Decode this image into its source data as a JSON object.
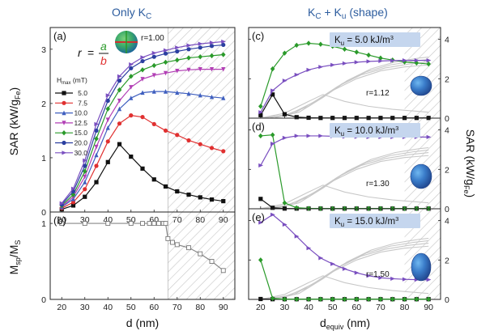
{
  "titles": {
    "left": "Only K",
    "left_sub": "C",
    "right_pre": "K",
    "right_sub1": "C",
    "right_mid": " + K",
    "right_sub2": "u",
    "right_post": " (shape)"
  },
  "colors": {
    "5.0": "#111111",
    "7.5": "#7f7f7f",
    "10.0": "#3f5fbf",
    "12.5": "#b23fb5",
    "15.0": "#2a9a2a",
    "20.0": "#2b3fa0",
    "30.0": "#7a4fc0",
    "red": "#e03030",
    "ghost": "#c8c8c8",
    "box": "#c5d6ee"
  },
  "chart_data": [
    {
      "id": "a",
      "type": "line",
      "panel_label": "(a)",
      "xlabel": "",
      "ylabel": "SAR (kW/gFe)",
      "ylabel_main": "SAR (kW/g",
      "ylabel_sub": "Fe",
      "ylabel_end": ")",
      "xlim": [
        15,
        95
      ],
      "ylim": [
        0,
        3.4
      ],
      "hatched_from": 66,
      "xticks": [
        "20",
        "30",
        "40",
        "50",
        "60",
        "70",
        "80",
        "90"
      ],
      "yticks": [
        "0",
        "1",
        "2",
        "3"
      ],
      "ytick_values": [
        0,
        1,
        2,
        3
      ],
      "ratio_label": "r = a / b",
      "ratio_r": "r",
      "ratio_eq": "=",
      "ratio_a": "a",
      "ratio_b": "b",
      "r_value": "r=1.00",
      "legend_title": "H",
      "legend_title_sub": "max",
      "legend_title_unit": " (mT)",
      "series": [
        {
          "name": "5.0",
          "marker": "square",
          "x": [
            20,
            25,
            30,
            35,
            40,
            45,
            50,
            55,
            60,
            65,
            70,
            75,
            80,
            85,
            90
          ],
          "y": [
            0.05,
            0.12,
            0.28,
            0.55,
            0.92,
            1.25,
            1.02,
            0.8,
            0.6,
            0.47,
            0.38,
            0.32,
            0.27,
            0.23,
            0.2
          ]
        },
        {
          "name": "7.5",
          "marker": "circle",
          "color_key": "red",
          "x": [
            20,
            25,
            30,
            35,
            40,
            45,
            50,
            55,
            60,
            65,
            70,
            75,
            80,
            85,
            90
          ],
          "y": [
            0.07,
            0.18,
            0.42,
            0.85,
            1.3,
            1.63,
            1.78,
            1.75,
            1.62,
            1.5,
            1.42,
            1.32,
            1.25,
            1.18,
            1.12
          ]
        },
        {
          "name": "10.0",
          "marker": "triangle-up",
          "x": [
            20,
            25,
            30,
            35,
            40,
            45,
            50,
            55,
            60,
            65,
            70,
            75,
            80,
            85,
            90
          ],
          "y": [
            0.09,
            0.24,
            0.55,
            1.05,
            1.55,
            1.9,
            2.1,
            2.2,
            2.22,
            2.22,
            2.2,
            2.18,
            2.15,
            2.12,
            2.1
          ]
        },
        {
          "name": "12.5",
          "marker": "triangle-down",
          "x": [
            20,
            25,
            30,
            35,
            40,
            45,
            50,
            55,
            60,
            65,
            70,
            75,
            80,
            85,
            90
          ],
          "y": [
            0.1,
            0.28,
            0.65,
            1.2,
            1.7,
            2.05,
            2.3,
            2.45,
            2.52,
            2.56,
            2.6,
            2.62,
            2.63,
            2.63,
            2.63
          ]
        },
        {
          "name": "15.0",
          "marker": "diamond",
          "x": [
            20,
            25,
            30,
            35,
            40,
            45,
            50,
            55,
            60,
            65,
            70,
            75,
            80,
            85,
            90
          ],
          "y": [
            0.12,
            0.32,
            0.75,
            1.35,
            1.9,
            2.25,
            2.5,
            2.62,
            2.7,
            2.76,
            2.8,
            2.84,
            2.86,
            2.88,
            2.9
          ]
        },
        {
          "name": "20.0",
          "marker": "hexagon",
          "x": [
            20,
            25,
            30,
            35,
            40,
            45,
            50,
            55,
            60,
            65,
            70,
            75,
            80,
            85,
            90
          ],
          "y": [
            0.14,
            0.38,
            0.85,
            1.5,
            2.05,
            2.42,
            2.65,
            2.78,
            2.86,
            2.92,
            2.96,
            3.0,
            3.03,
            3.06,
            3.08
          ]
        },
        {
          "name": "30.0",
          "marker": "triangle-right",
          "x": [
            20,
            25,
            30,
            35,
            40,
            45,
            50,
            55,
            60,
            65,
            70,
            75,
            80,
            85,
            90
          ],
          "y": [
            0.16,
            0.43,
            0.95,
            1.62,
            2.15,
            2.5,
            2.72,
            2.85,
            2.93,
            2.98,
            3.03,
            3.07,
            3.1,
            3.12,
            3.14
          ]
        }
      ]
    },
    {
      "id": "b",
      "type": "line",
      "panel_label": "(b)",
      "xlabel": "d (nm)",
      "ylabel": "Msp/MS",
      "ylabel_main": "M",
      "ylabel_sub": "sp",
      "ylabel_mid": "/M",
      "ylabel_sub2": "S",
      "xlim": [
        15,
        95
      ],
      "ylim": [
        0,
        1.15
      ],
      "hatched_from": 66,
      "xticks": [
        "20",
        "30",
        "40",
        "50",
        "60",
        "70",
        "80",
        "90"
      ],
      "yticks": [
        "0",
        "1"
      ],
      "ytick_values": [
        0,
        1
      ],
      "series": [
        {
          "name": "",
          "marker": "open-square",
          "x": [
            20,
            30,
            40,
            50,
            55,
            58,
            60,
            62,
            64,
            65,
            66,
            68,
            70,
            75,
            80,
            85,
            90
          ],
          "y": [
            1,
            1,
            1,
            1,
            1,
            1,
            1,
            1,
            1,
            1,
            0.8,
            0.75,
            0.72,
            0.68,
            0.6,
            0.5,
            0.38
          ]
        }
      ]
    },
    {
      "id": "c",
      "type": "line",
      "panel_label": "(c)",
      "ku_pre": "K",
      "ku_sub": "u",
      "ku_value": " = 5.0 kJ/m",
      "ku_sup": "3",
      "r_value": "r=1.12",
      "xlim": [
        15,
        95
      ],
      "ylim": [
        0,
        4.6
      ],
      "hatched_from": 80,
      "yticks": [
        "0",
        "2",
        "4"
      ],
      "ytick_values": [
        0,
        2,
        4
      ],
      "series": [
        {
          "name": "5.0",
          "marker": "square",
          "x": [
            20,
            25,
            30,
            35,
            40,
            45,
            50,
            55,
            60,
            65,
            70,
            75,
            80,
            85,
            90
          ],
          "y": [
            0.15,
            1.2,
            0.2,
            0.05,
            0.02,
            0.01,
            0.01,
            0.01,
            0.01,
            0.01,
            0.01,
            0.01,
            0.01,
            0.01,
            0.01
          ]
        },
        {
          "name": "15.0",
          "marker": "diamond",
          "x": [
            20,
            25,
            30,
            35,
            40,
            45,
            50,
            55,
            60,
            65,
            70,
            75,
            80,
            85,
            90
          ],
          "y": [
            0.6,
            2.5,
            3.3,
            3.7,
            3.8,
            3.75,
            3.65,
            3.5,
            3.35,
            3.2,
            3.05,
            2.95,
            2.85,
            2.8,
            2.75
          ]
        },
        {
          "name": "30.0",
          "marker": "triangle-right",
          "x": [
            20,
            25,
            30,
            35,
            40,
            45,
            50,
            55,
            60,
            65,
            70,
            75,
            80,
            85,
            90
          ],
          "y": [
            0.3,
            1.4,
            1.9,
            2.2,
            2.45,
            2.6,
            2.7,
            2.78,
            2.84,
            2.88,
            2.9,
            2.92,
            2.93,
            2.93,
            2.93
          ]
        }
      ]
    },
    {
      "id": "d",
      "type": "line",
      "panel_label": "(d)",
      "ku_pre": "K",
      "ku_sub": "u",
      "ku_value": " = 10.0 kJ/m",
      "ku_sup": "3",
      "r_value": "r=1.30",
      "ylabel": "SAR (kW/gFe)",
      "ylabel_main": "SAR (kW/g",
      "ylabel_sub": "Fe",
      "ylabel_end": ")",
      "xlim": [
        15,
        95
      ],
      "ylim": [
        0,
        4.6
      ],
      "hatched_from": 80,
      "yticks": [
        "0",
        "2",
        "4"
      ],
      "ytick_values": [
        0,
        2,
        4
      ],
      "series": [
        {
          "name": "5.0",
          "marker": "square",
          "x": [
            20,
            25,
            30,
            35,
            40,
            45,
            50,
            55,
            60,
            65,
            70,
            75,
            80,
            85,
            90
          ],
          "y": [
            0.5,
            0.05,
            0.01,
            0.01,
            0.01,
            0.01,
            0.01,
            0.01,
            0.01,
            0.01,
            0.01,
            0.01,
            0.01,
            0.01,
            0.01
          ]
        },
        {
          "name": "15.0",
          "marker": "diamond",
          "x": [
            20,
            25,
            30,
            35,
            40,
            45,
            50,
            55,
            60,
            65,
            70,
            75,
            80,
            85,
            90
          ],
          "y": [
            3.7,
            3.75,
            0.3,
            0.05,
            0.02,
            0.01,
            0.01,
            0.01,
            0.01,
            0.01,
            0.01,
            0.01,
            0.01,
            0.01,
            0.01
          ]
        },
        {
          "name": "30.0",
          "marker": "triangle-right",
          "x": [
            20,
            25,
            30,
            35,
            40,
            45,
            50,
            55,
            60,
            65,
            70,
            75,
            80,
            85,
            90
          ],
          "y": [
            2.2,
            3.3,
            3.6,
            3.7,
            3.7,
            3.7,
            3.68,
            3.66,
            3.65,
            3.64,
            3.64,
            3.64,
            3.64,
            3.64,
            3.64
          ]
        }
      ]
    },
    {
      "id": "e",
      "type": "line",
      "panel_label": "(e)",
      "ku_pre": "K",
      "ku_sub": "u",
      "ku_value": " = 15.0 kJ/m",
      "ku_sup": "3",
      "r_value": "r=1.50",
      "xlabel": "dequiv (nm)",
      "xlabel_main": "d",
      "xlabel_sub": "equiv",
      "xlabel_end": " (nm)",
      "xlim": [
        15,
        95
      ],
      "ylim": [
        0,
        4.6
      ],
      "hatched_from": 80,
      "xticks": [
        "20",
        "30",
        "40",
        "50",
        "60",
        "70",
        "80",
        "90"
      ],
      "yticks": [
        "0",
        "2",
        "4"
      ],
      "ytick_values": [
        0,
        2,
        4
      ],
      "series": [
        {
          "name": "5.0",
          "marker": "square",
          "x": [
            20,
            25,
            30,
            35,
            40,
            45,
            50,
            55,
            60,
            65,
            70,
            75,
            80,
            85,
            90
          ],
          "y": [
            0.02,
            0.01,
            0.01,
            0.01,
            0.01,
            0.01,
            0.01,
            0.01,
            0.01,
            0.01,
            0.01,
            0.01,
            0.01,
            0.01,
            0.01
          ]
        },
        {
          "name": "15.0",
          "marker": "diamond",
          "x": [
            20,
            25,
            30,
            35,
            40,
            45,
            50,
            55,
            60,
            65,
            70,
            75,
            80,
            85,
            90
          ],
          "y": [
            2.0,
            0.05,
            0.01,
            0.01,
            0.01,
            0.01,
            0.01,
            0.01,
            0.01,
            0.01,
            0.01,
            0.01,
            0.01,
            0.01,
            0.01
          ]
        },
        {
          "name": "30.0",
          "marker": "triangle-right",
          "x": [
            20,
            25,
            30,
            35,
            40,
            45,
            50,
            55,
            60,
            65,
            70,
            75,
            80,
            85,
            90
          ],
          "y": [
            3.9,
            4.3,
            3.8,
            3.2,
            2.6,
            2.1,
            1.8,
            1.55,
            1.35,
            1.2,
            1.1,
            1.05,
            1.02,
            1.0,
            1.0
          ]
        }
      ]
    }
  ]
}
